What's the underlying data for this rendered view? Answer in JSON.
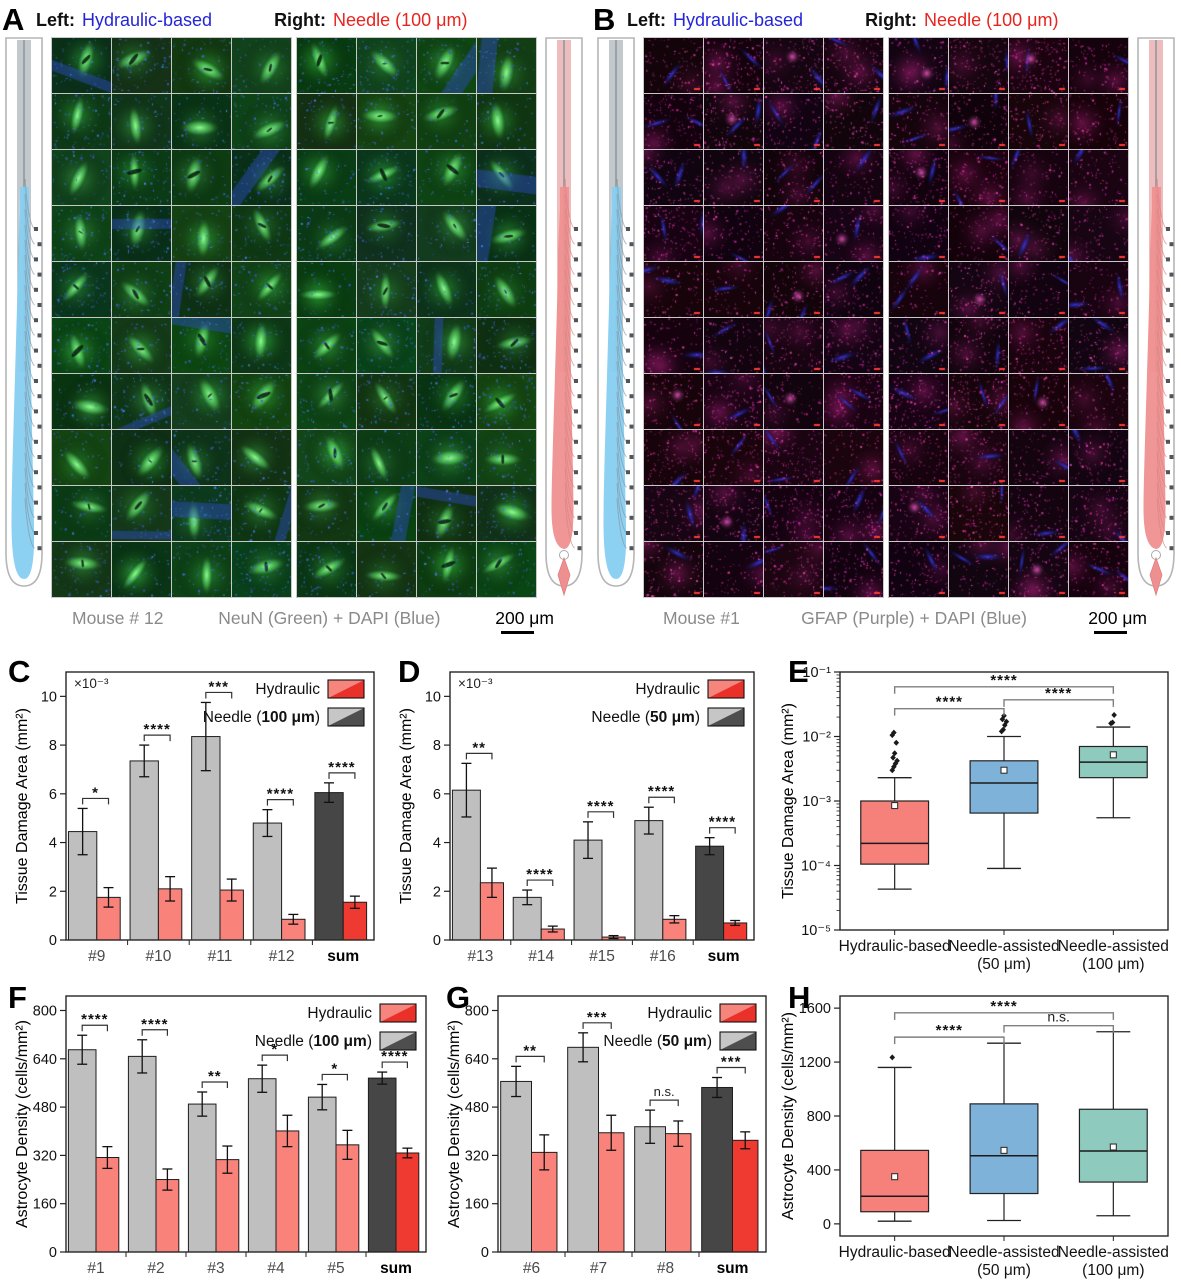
{
  "colors": {
    "header_left_blue": "#2525d8",
    "header_right_red": "#e8241f",
    "caption_gray": "#8a8a8a",
    "bar_needle_gray": "#bfbfbf",
    "bar_needle_sum_gray": "#464646",
    "bar_hydraulic_red": "#f9837b",
    "bar_hydraulic_sum_red": "#ee3a31",
    "box_hydraulic": "#f5817a",
    "box_needle50": "#7fb2d9",
    "box_needle100": "#8ecabe",
    "neun_green": "#2ea84e",
    "dapi_blue": "#3c50e0",
    "gfap_magenta": "#e040b0"
  },
  "panel_A": {
    "letter": "A",
    "left_key": "Left:",
    "left_value": "Hydraulic-based",
    "right_key": "Right:",
    "right_value": "Needle (100 μm)",
    "mouse": "Mouse # 12",
    "stain": "NeuN (Green) + DAPI (Blue)",
    "scale_bar": "200 μm"
  },
  "panel_B": {
    "letter": "B",
    "left_key": "Left:",
    "left_value": "Hydraulic-based",
    "right_key": "Right:",
    "right_value": "Needle (100 μm)",
    "mouse": "Mouse #1",
    "stain": "GFAP (Purple) + DAPI (Blue)",
    "scale_bar": "200 μm"
  },
  "chart_data": [
    {
      "id": "C",
      "type": "bar",
      "panel_letter": "C",
      "ylabel": "Tissue Damage Area (mm²)",
      "scale_note": "×10⁻³",
      "ylim": [
        0,
        11
      ],
      "yticks": [
        0,
        2,
        4,
        6,
        8,
        10
      ],
      "categories": [
        "#9",
        "#10",
        "#11",
        "#12",
        "sum"
      ],
      "series": [
        {
          "name": "Needle (100 μm)",
          "legend_pre": "Needle (",
          "legend_bold": "100 μm",
          "legend_post": ")",
          "values": [
            4.45,
            7.35,
            8.35,
            4.8,
            6.05
          ],
          "errors": [
            0.95,
            0.65,
            1.4,
            0.55,
            0.4
          ],
          "color": "#bfbfbf",
          "sum_color": "#464646",
          "legend_colors": [
            "#c6c6c6",
            "#4e4e4e"
          ]
        },
        {
          "name": "Hydraulic",
          "legend_pre": "Hydraulic",
          "legend_bold": "",
          "legend_post": "",
          "values": [
            1.75,
            2.1,
            2.05,
            0.85,
            1.55
          ],
          "errors": [
            0.4,
            0.5,
            0.45,
            0.2,
            0.25
          ],
          "color": "#f9837b",
          "sum_color": "#ee3a31",
          "legend_colors": [
            "#f6857e",
            "#e93129"
          ]
        }
      ],
      "significance": [
        "*",
        "****",
        "***",
        "****",
        "****"
      ]
    },
    {
      "id": "D",
      "type": "bar",
      "panel_letter": "D",
      "ylabel": "Tissue Damage Area (mm²)",
      "scale_note": "×10⁻³",
      "ylim": [
        0,
        11
      ],
      "yticks": [
        0,
        2,
        4,
        6,
        8,
        10
      ],
      "categories": [
        "#13",
        "#14",
        "#15",
        "#16",
        "sum"
      ],
      "series": [
        {
          "name": "Needle (50 μm)",
          "legend_pre": "Needle (",
          "legend_bold": "50 μm",
          "legend_post": ")",
          "values": [
            6.15,
            1.75,
            4.1,
            4.9,
            3.85
          ],
          "errors": [
            1.1,
            0.3,
            0.75,
            0.55,
            0.35
          ],
          "color": "#bfbfbf",
          "sum_color": "#464646",
          "legend_colors": [
            "#c6c6c6",
            "#4e4e4e"
          ]
        },
        {
          "name": "Hydraulic",
          "legend_pre": "Hydraulic",
          "legend_bold": "",
          "legend_post": "",
          "values": [
            2.35,
            0.45,
            0.12,
            0.85,
            0.7
          ],
          "errors": [
            0.6,
            0.12,
            0.06,
            0.15,
            0.1
          ],
          "color": "#f9837b",
          "sum_color": "#ee3a31",
          "legend_colors": [
            "#f6857e",
            "#e93129"
          ]
        }
      ],
      "significance": [
        "**",
        "****",
        "****",
        "****",
        "****"
      ]
    },
    {
      "id": "E",
      "type": "box",
      "panel_letter": "E",
      "ylabel": "Tissue Damage Area (mm²)",
      "scale": "log",
      "ylim": [
        1e-05,
        0.1
      ],
      "yticks": [
        {
          "v": 1e-05,
          "label": "10⁻⁵"
        },
        {
          "v": 0.0001,
          "label": "10⁻⁴"
        },
        {
          "v": 0.001,
          "label": "10⁻³"
        },
        {
          "v": 0.01,
          "label": "10⁻²"
        },
        {
          "v": 0.1,
          "label": "10⁻¹"
        }
      ],
      "groups": [
        {
          "label_lines": [
            "Hydraulic-based"
          ],
          "color": "#f5817a",
          "low": 4.3e-05,
          "q1": 0.000105,
          "median": 0.00022,
          "q3": 0.001,
          "high": 0.0023,
          "mean": 0.00085,
          "outliers": [
            0.003,
            0.0034,
            0.0038,
            0.0042,
            0.0047,
            0.0055,
            0.008,
            0.0105,
            0.0115
          ]
        },
        {
          "label_lines": [
            "Needle-assisted",
            "(50 μm)"
          ],
          "color": "#7fb2d9",
          "low": 9e-05,
          "q1": 0.00065,
          "median": 0.0019,
          "q3": 0.0042,
          "high": 0.01,
          "mean": 0.003,
          "outliers": [
            0.012,
            0.0128,
            0.015,
            0.017,
            0.0185,
            0.021
          ]
        },
        {
          "label_lines": [
            "Needle-assisted",
            "(100 μm)"
          ],
          "color": "#8ecabe",
          "low": 0.00055,
          "q1": 0.0023,
          "median": 0.004,
          "q3": 0.007,
          "high": 0.014,
          "mean": 0.0052,
          "outliers": [
            0.016,
            0.0165,
            0.0215
          ]
        }
      ],
      "brackets": [
        {
          "from": 0,
          "to": 2,
          "label": "****",
          "y": 0.059
        },
        {
          "from": 1,
          "to": 2,
          "label": "****",
          "y": 0.037
        },
        {
          "from": 0,
          "to": 1,
          "label": "****",
          "y": 0.027
        }
      ]
    },
    {
      "id": "F",
      "type": "bar",
      "panel_letter": "F",
      "ylabel": "Astrocyte Density (cells/mm²)",
      "scale_note": "",
      "ylim": [
        0,
        848
      ],
      "yticks": [
        0,
        160,
        320,
        480,
        640,
        800
      ],
      "categories": [
        "#1",
        "#2",
        "#3",
        "#4",
        "#5",
        "sum"
      ],
      "series": [
        {
          "name": "Needle (100 μm)",
          "legend_pre": "Needle (",
          "legend_bold": "100 μm",
          "legend_post": ")",
          "values": [
            670,
            648,
            490,
            574,
            513,
            576
          ],
          "errors": [
            48,
            55,
            40,
            45,
            42,
            20
          ],
          "color": "#bfbfbf",
          "sum_color": "#464646",
          "legend_colors": [
            "#c6c6c6",
            "#4e4e4e"
          ]
        },
        {
          "name": "Hydraulic",
          "legend_pre": "Hydraulic",
          "legend_bold": "",
          "legend_post": "",
          "values": [
            313,
            240,
            306,
            401,
            355,
            328
          ],
          "errors": [
            36,
            35,
            45,
            52,
            48,
            16
          ],
          "color": "#f9837b",
          "sum_color": "#ee3a31",
          "legend_colors": [
            "#f6857e",
            "#e93129"
          ]
        }
      ],
      "significance": [
        "****",
        "****",
        "**",
        "*",
        "*",
        "****"
      ]
    },
    {
      "id": "G",
      "type": "bar",
      "panel_letter": "G",
      "ylabel": "Astrocyte Density (cells/mm²)",
      "scale_note": "",
      "ylim": [
        0,
        848
      ],
      "yticks": [
        0,
        160,
        320,
        480,
        640,
        800
      ],
      "categories": [
        "#6",
        "#7",
        "#8",
        "sum"
      ],
      "series": [
        {
          "name": "Needle (50 μm)",
          "legend_pre": "Needle (",
          "legend_bold": "50 μm",
          "legend_post": ")",
          "values": [
            565,
            678,
            415,
            545
          ],
          "errors": [
            50,
            48,
            55,
            33
          ],
          "color": "#bfbfbf",
          "sum_color": "#464646",
          "legend_colors": [
            "#c6c6c6",
            "#4e4e4e"
          ]
        },
        {
          "name": "Hydraulic",
          "legend_pre": "Hydraulic",
          "legend_bold": "",
          "legend_post": "",
          "values": [
            330,
            395,
            392,
            370
          ],
          "errors": [
            58,
            58,
            42,
            28
          ],
          "color": "#f9837b",
          "sum_color": "#ee3a31",
          "legend_colors": [
            "#f6857e",
            "#e93129"
          ]
        }
      ],
      "significance": [
        "**",
        "***",
        "n.s.",
        "***"
      ]
    },
    {
      "id": "H",
      "type": "box",
      "panel_letter": "H",
      "ylabel": "Astrocyte Density (cells/mm²)",
      "scale": "linear",
      "ylim": [
        -90,
        1690
      ],
      "yticks": [
        {
          "v": 0,
          "label": "0"
        },
        {
          "v": 400,
          "label": "400"
        },
        {
          "v": 800,
          "label": "800"
        },
        {
          "v": 1200,
          "label": "1200"
        },
        {
          "v": 1600,
          "label": "1600"
        }
      ],
      "groups": [
        {
          "label_lines": [
            "Hydraulic-based"
          ],
          "color": "#f5817a",
          "low": 20,
          "q1": 90,
          "median": 205,
          "q3": 545,
          "high": 1160,
          "mean": 350,
          "outliers": [
            1235
          ]
        },
        {
          "label_lines": [
            "Needle-assisted",
            "(50 μm)"
          ],
          "color": "#7fb2d9",
          "low": 25,
          "q1": 225,
          "median": 505,
          "q3": 890,
          "high": 1340,
          "mean": 545,
          "outliers": []
        },
        {
          "label_lines": [
            "Needle-assisted",
            "(100 μm)"
          ],
          "color": "#8ecabe",
          "low": 60,
          "q1": 310,
          "median": 540,
          "q3": 850,
          "high": 1425,
          "mean": 570,
          "outliers": []
        }
      ],
      "brackets": [
        {
          "from": 0,
          "to": 2,
          "label": "****",
          "y": 1565
        },
        {
          "from": 1,
          "to": 2,
          "label": "n.s.",
          "y": 1470
        },
        {
          "from": 0,
          "to": 1,
          "label": "****",
          "y": 1385
        }
      ]
    }
  ]
}
